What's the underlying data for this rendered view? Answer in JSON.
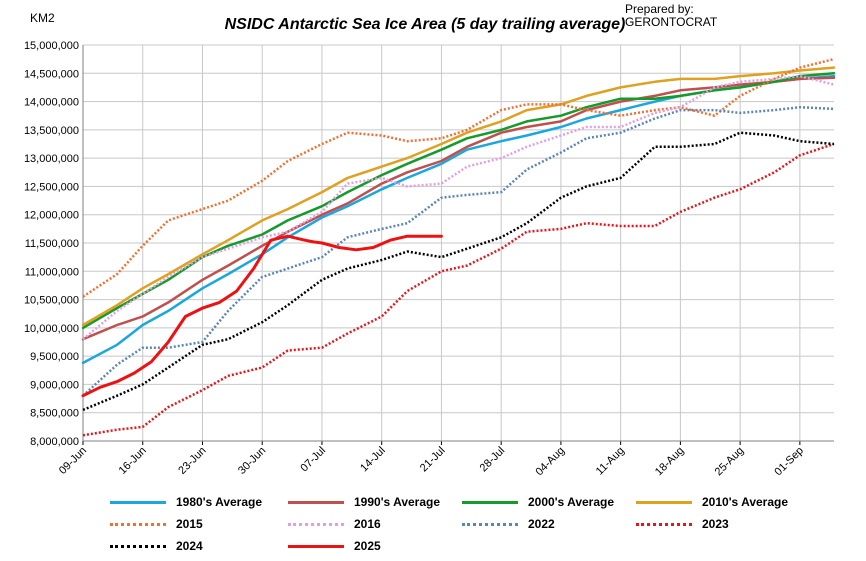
{
  "header": {
    "title": "NSIDC  Antarctic Sea Ice Area (5 day trailing average)",
    "unit_label": "KM2",
    "credit_line1": "Prepared by:",
    "credit_line2": "GERONTOCRAT"
  },
  "chart_data": {
    "type": "line",
    "title": "NSIDC  Antarctic Sea Ice Area (5 day trailing average)",
    "ylabel": "KM2",
    "xlabel": "",
    "grid": true,
    "legend_position": "bottom",
    "ylim": [
      8000000,
      15000000
    ],
    "y_ticks": [
      8000000,
      8500000,
      9000000,
      9500000,
      10000000,
      10500000,
      11000000,
      11500000,
      12000000,
      12500000,
      13000000,
      13500000,
      14000000,
      14500000,
      15000000
    ],
    "y_tick_labels": [
      "8,000,000",
      "8,500,000",
      "9,000,000",
      "9,500,000",
      "10,000,000",
      "10,500,000",
      "11,000,000",
      "11,500,000",
      "12,000,000",
      "12,500,000",
      "13,000,000",
      "13,500,000",
      "14,000,000",
      "14,500,000",
      "15,000,000"
    ],
    "x_range_days": [
      0,
      88
    ],
    "x_ticks": [
      0,
      7,
      14,
      21,
      28,
      35,
      42,
      49,
      56,
      63,
      70,
      77,
      84
    ],
    "x_tick_labels": [
      "09-Jun",
      "16-Jun",
      "23-Jun",
      "30-Jun",
      "07-Jul",
      "14-Jul",
      "21-Jul",
      "28-Jul",
      "04-Aug",
      "11-Aug",
      "18-Aug",
      "25-Aug",
      "01-Sep"
    ],
    "series": [
      {
        "name": "1980's Average",
        "color": "#1aa7e0",
        "dash": "solid",
        "x": [
          0,
          4,
          7,
          10,
          14,
          17,
          21,
          24,
          28,
          31,
          35,
          38,
          42,
          45,
          49,
          52,
          56,
          59,
          63,
          67,
          70,
          74,
          77,
          81,
          84,
          88
        ],
        "y": [
          9380000,
          9700000,
          10050000,
          10300000,
          10700000,
          10950000,
          11300000,
          11600000,
          11950000,
          12150000,
          12450000,
          12650000,
          12900000,
          13150000,
          13300000,
          13400000,
          13550000,
          13700000,
          13850000,
          14000000,
          14100000,
          14200000,
          14250000,
          14350000,
          14400000,
          14450000
        ]
      },
      {
        "name": "1990's Average",
        "color": "#c0504d",
        "dash": "solid",
        "x": [
          0,
          4,
          7,
          10,
          14,
          17,
          21,
          24,
          28,
          31,
          35,
          38,
          42,
          45,
          49,
          52,
          56,
          59,
          63,
          67,
          70,
          74,
          77,
          81,
          84,
          88
        ],
        "y": [
          9800000,
          10050000,
          10200000,
          10450000,
          10850000,
          11100000,
          11450000,
          11700000,
          12000000,
          12200000,
          12550000,
          12750000,
          12950000,
          13200000,
          13450000,
          13550000,
          13650000,
          13850000,
          14000000,
          14100000,
          14200000,
          14250000,
          14300000,
          14350000,
          14400000,
          14420000
        ]
      },
      {
        "name": "2000's Average",
        "color": "#149b2b",
        "dash": "solid",
        "x": [
          0,
          4,
          7,
          10,
          14,
          17,
          21,
          24,
          28,
          31,
          35,
          38,
          42,
          45,
          49,
          52,
          56,
          59,
          63,
          67,
          70,
          74,
          77,
          81,
          84,
          88
        ],
        "y": [
          10000000,
          10350000,
          10600000,
          10850000,
          11250000,
          11450000,
          11650000,
          11900000,
          12150000,
          12400000,
          12700000,
          12900000,
          13150000,
          13350000,
          13500000,
          13650000,
          13750000,
          13900000,
          14050000,
          14050000,
          14100000,
          14200000,
          14250000,
          14350000,
          14450000,
          14500000
        ]
      },
      {
        "name": "2010's Average",
        "color": "#e0a020",
        "dash": "solid",
        "x": [
          0,
          4,
          7,
          10,
          14,
          17,
          21,
          24,
          28,
          31,
          35,
          38,
          42,
          45,
          49,
          52,
          56,
          59,
          63,
          67,
          70,
          74,
          77,
          81,
          84,
          88
        ],
        "y": [
          10050000,
          10400000,
          10700000,
          10950000,
          11300000,
          11550000,
          11900000,
          12100000,
          12400000,
          12650000,
          12850000,
          13000000,
          13250000,
          13450000,
          13650000,
          13850000,
          13950000,
          14100000,
          14250000,
          14350000,
          14400000,
          14400000,
          14450000,
          14500000,
          14550000,
          14600000
        ]
      },
      {
        "name": "2015",
        "color": "#f07030",
        "dash": "2,2",
        "x": [
          0,
          4,
          7,
          10,
          14,
          17,
          21,
          24,
          28,
          31,
          35,
          38,
          42,
          45,
          49,
          52,
          56,
          59,
          63,
          67,
          70,
          74,
          77,
          81,
          84,
          88
        ],
        "y": [
          10550000,
          10950000,
          11450000,
          11900000,
          12100000,
          12250000,
          12600000,
          12950000,
          13250000,
          13450000,
          13400000,
          13300000,
          13350000,
          13500000,
          13850000,
          13950000,
          13950000,
          13850000,
          13750000,
          13850000,
          13900000,
          13750000,
          14100000,
          14400000,
          14600000,
          14750000
        ]
      },
      {
        "name": "2016",
        "color": "#e0a0e0",
        "dash": "2,2",
        "x": [
          0,
          4,
          7,
          10,
          14,
          17,
          21,
          24,
          28,
          31,
          35,
          38,
          42,
          45,
          49,
          52,
          56,
          59,
          63,
          67,
          70,
          74,
          77,
          81,
          84,
          88
        ],
        "y": [
          9800000,
          10300000,
          10600000,
          10900000,
          11250000,
          11400000,
          11600000,
          11700000,
          12050000,
          12550000,
          12650000,
          12500000,
          12550000,
          12850000,
          13000000,
          13200000,
          13400000,
          13550000,
          13550000,
          13800000,
          13900000,
          14250000,
          14350000,
          14400000,
          14450000,
          14300000
        ]
      },
      {
        "name": "2022",
        "color": "#5b85b5",
        "dash": "2,2",
        "x": [
          0,
          4,
          7,
          10,
          14,
          17,
          21,
          24,
          28,
          31,
          35,
          38,
          42,
          45,
          49,
          52,
          56,
          59,
          63,
          67,
          70,
          74,
          77,
          81,
          84,
          88
        ],
        "y": [
          8800000,
          9350000,
          9650000,
          9650000,
          9750000,
          10300000,
          10900000,
          11050000,
          11250000,
          11600000,
          11750000,
          11850000,
          12300000,
          12350000,
          12400000,
          12800000,
          13100000,
          13350000,
          13450000,
          13700000,
          13850000,
          13850000,
          13800000,
          13850000,
          13900000,
          13870000
        ]
      },
      {
        "name": "2023",
        "color": "#e8141a",
        "dash": "2,2",
        "x": [
          0,
          4,
          7,
          10,
          14,
          17,
          21,
          24,
          28,
          31,
          35,
          38,
          42,
          45,
          49,
          52,
          56,
          59,
          63,
          67,
          70,
          74,
          77,
          81,
          84,
          88
        ],
        "y": [
          8100000,
          8200000,
          8250000,
          8600000,
          8900000,
          9150000,
          9300000,
          9600000,
          9650000,
          9900000,
          10200000,
          10650000,
          11000000,
          11100000,
          11400000,
          11700000,
          11750000,
          11850000,
          11800000,
          11800000,
          12050000,
          12300000,
          12450000,
          12750000,
          13050000,
          13250000
        ]
      },
      {
        "name": "2024",
        "color": "#000000",
        "dash": "2,2",
        "x": [
          0,
          4,
          7,
          10,
          14,
          17,
          21,
          24,
          28,
          31,
          35,
          38,
          42,
          45,
          49,
          52,
          56,
          59,
          63,
          67,
          70,
          74,
          77,
          81,
          84,
          88
        ],
        "y": [
          8550000,
          8800000,
          9000000,
          9300000,
          9700000,
          9800000,
          10100000,
          10400000,
          10850000,
          11050000,
          11200000,
          11350000,
          11250000,
          11400000,
          11600000,
          11850000,
          12300000,
          12500000,
          12650000,
          13200000,
          13200000,
          13250000,
          13450000,
          13400000,
          13300000,
          13250000
        ]
      },
      {
        "name": "2025",
        "color": "#ee1111",
        "dash": "solid",
        "x": [
          0,
          2,
          4,
          6,
          8,
          10,
          12,
          14,
          16,
          18,
          20,
          22,
          24,
          26,
          27,
          28,
          30,
          32,
          34,
          36,
          38,
          39,
          41,
          42
        ],
        "y": [
          8800000,
          8950000,
          9050000,
          9200000,
          9400000,
          9750000,
          10200000,
          10350000,
          10450000,
          10650000,
          11050000,
          11550000,
          11620000,
          11550000,
          11520000,
          11500000,
          11420000,
          11380000,
          11420000,
          11550000,
          11620000,
          11620000,
          11620000,
          11620000
        ]
      }
    ]
  }
}
